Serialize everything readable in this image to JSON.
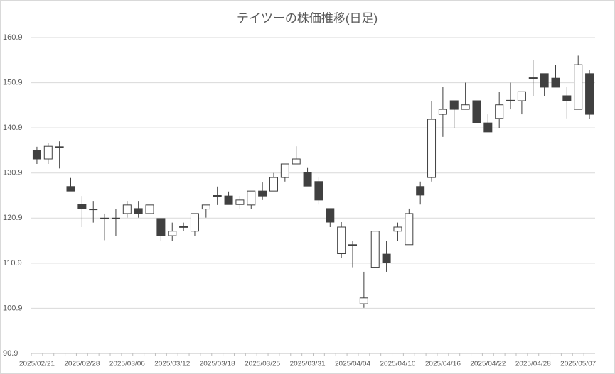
{
  "chart_data": {
    "type": "candlestick",
    "title": "テイツーの株価推移(日足)",
    "categories": [
      "2025/02/21",
      null,
      null,
      null,
      "2025/02/28",
      null,
      null,
      null,
      "2025/03/06",
      null,
      null,
      null,
      "2025/03/12",
      null,
      null,
      null,
      "2025/03/18",
      null,
      null,
      null,
      "2025/03/25",
      null,
      null,
      null,
      "2025/03/31",
      null,
      null,
      null,
      "2025/04/04",
      null,
      null,
      null,
      "2025/04/10",
      null,
      null,
      null,
      "2025/04/16",
      null,
      null,
      null,
      "2025/04/22",
      null,
      null,
      null,
      "2025/04/28",
      null,
      null,
      null,
      "2025/05/07",
      null
    ],
    "open": [
      135.9,
      134.0,
      136.7,
      127.9,
      124.0,
      122.9,
      120.9,
      120.8,
      121.9,
      123.0,
      121.9,
      120.8,
      117.0,
      118.9,
      118.0,
      122.9,
      125.8,
      125.8,
      123.9,
      123.8,
      126.9,
      126.9,
      129.9,
      132.9,
      131.0,
      129.0,
      123.0,
      113.0,
      115.0,
      101.9,
      110.0,
      112.9,
      118.0,
      115.0,
      127.9,
      129.9,
      143.9,
      146.9,
      145.0,
      146.9,
      142.0,
      143.0,
      146.9,
      146.9,
      151.9,
      152.9,
      151.9,
      148.0,
      145.0,
      152.9
    ],
    "high": [
      136.7,
      137.6,
      137.9,
      129.8,
      125.8,
      124.7,
      121.9,
      122.9,
      124.7,
      124.7,
      123.8,
      120.8,
      119.9,
      119.9,
      121.9,
      123.8,
      127.9,
      126.8,
      125.8,
      126.9,
      128.8,
      130.9,
      132.9,
      136.8,
      132.0,
      129.9,
      123.0,
      120.0,
      115.9,
      109.0,
      118.0,
      115.9,
      119.9,
      123.0,
      129.0,
      146.9,
      149.9,
      146.9,
      150.9,
      146.9,
      143.9,
      148.9,
      150.9,
      148.9,
      155.9,
      152.9,
      154.9,
      149.9,
      156.9,
      153.8
    ],
    "low": [
      132.9,
      132.9,
      131.9,
      126.9,
      118.9,
      119.9,
      116.0,
      116.9,
      121.0,
      121.0,
      121.9,
      115.9,
      115.9,
      118.0,
      117.0,
      121.0,
      123.8,
      123.9,
      123.0,
      122.9,
      124.9,
      126.9,
      129.0,
      132.9,
      128.0,
      123.9,
      118.9,
      112.0,
      110.0,
      101.0,
      110.0,
      109.0,
      115.9,
      115.0,
      123.9,
      129.0,
      138.9,
      140.9,
      145.0,
      142.0,
      140.0,
      140.9,
      145.0,
      143.9,
      148.0,
      148.0,
      149.9,
      143.0,
      145.0,
      142.9
    ],
    "close": [
      134.0,
      136.8,
      136.5,
      126.9,
      123.0,
      122.8,
      120.8,
      120.9,
      123.8,
      121.9,
      123.8,
      117.0,
      118.0,
      119.0,
      121.9,
      123.8,
      125.9,
      123.9,
      124.9,
      126.9,
      125.8,
      129.9,
      132.9,
      134.0,
      128.0,
      124.9,
      120.0,
      118.9,
      115.0,
      103.2,
      118.0,
      111.1,
      118.9,
      121.9,
      126.0,
      142.8,
      145.0,
      145.0,
      146.0,
      142.0,
      140.0,
      146.0,
      147.0,
      148.9,
      152.0,
      149.9,
      149.9,
      146.9,
      154.9,
      143.9
    ],
    "up_color": "#ffffff",
    "down_color": "#404040",
    "line_color": "#404040",
    "ylim": [
      90.9,
      160.9
    ],
    "yticks": [
      90.9,
      100.9,
      110.9,
      120.9,
      130.9,
      140.9,
      150.9,
      160.9
    ],
    "grid": true
  }
}
